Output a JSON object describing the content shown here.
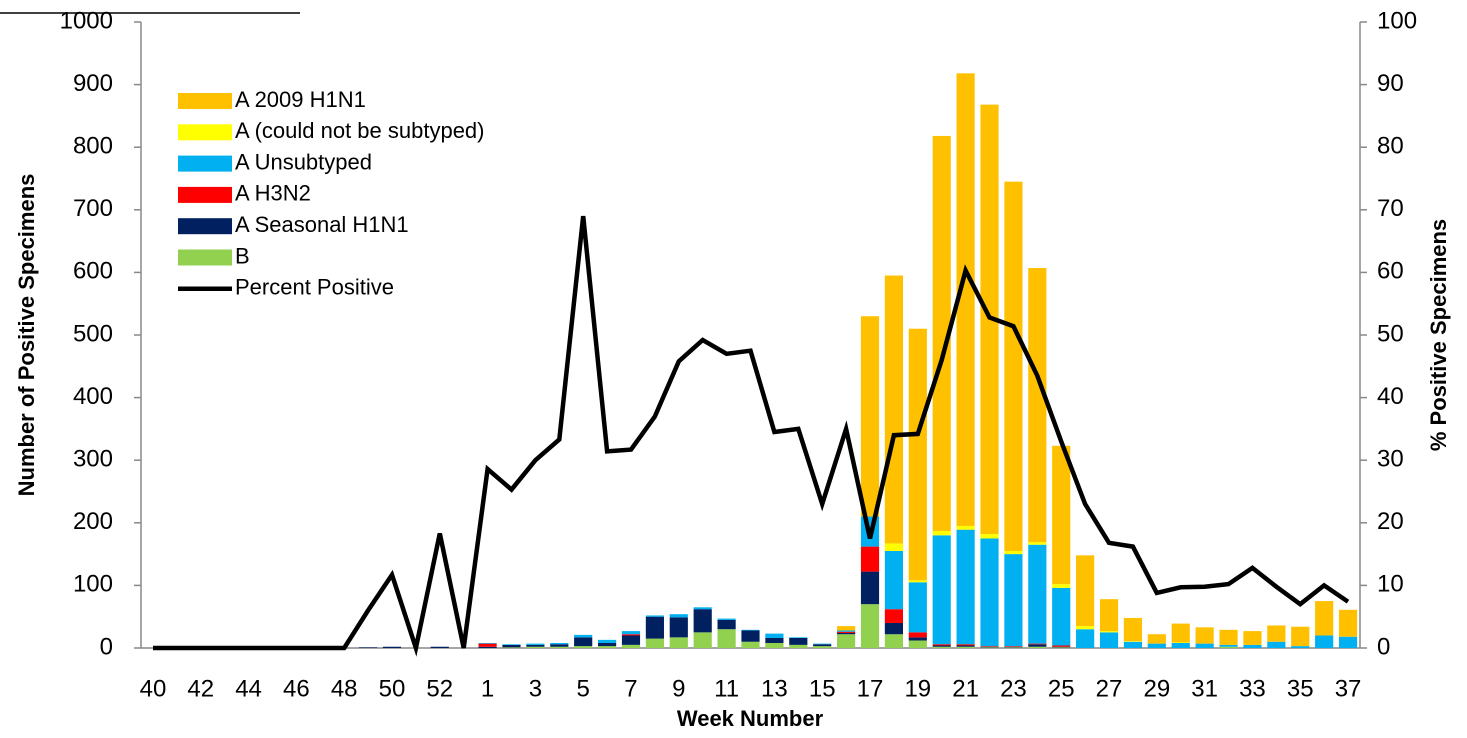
{
  "chart_data": {
    "type": "bar",
    "stacked": true,
    "x_label": "Week Number",
    "y_label": "Number of Positive Specimens",
    "y2_label": "% Positive Specimens",
    "categories": [
      "40",
      null,
      "42",
      null,
      "44",
      null,
      "46",
      null,
      "48",
      null,
      "50",
      null,
      "52",
      null,
      "1",
      null,
      "3",
      null,
      "5",
      null,
      "7",
      null,
      "9",
      null,
      "11",
      null,
      "13",
      null,
      "15",
      null,
      "17",
      null,
      "19",
      null,
      "21",
      null,
      "23",
      null,
      "25",
      null,
      "27",
      null,
      "29",
      null,
      "31",
      null,
      "33",
      null,
      "35",
      null,
      "37"
    ],
    "ylim": [
      0,
      1000
    ],
    "yticks": [
      0,
      100,
      200,
      300,
      400,
      500,
      600,
      700,
      800,
      900,
      1000
    ],
    "y2lim": [
      0,
      100
    ],
    "y2ticks": [
      0,
      10,
      20,
      30,
      40,
      50,
      60,
      70,
      80,
      90,
      100
    ],
    "grid": false,
    "legend": "upper left",
    "series": [
      {
        "name": "B",
        "color": "#92D050",
        "values": [
          0,
          0,
          0,
          0,
          0,
          0,
          0,
          0,
          0,
          0,
          0,
          0,
          0,
          0,
          0,
          1,
          2,
          2,
          3,
          3,
          5,
          15,
          17,
          25,
          30,
          10,
          8,
          5,
          3,
          22,
          70,
          22,
          12,
          2,
          2,
          1,
          1,
          2,
          1,
          0,
          0,
          0,
          0,
          0,
          0,
          2,
          0,
          0,
          0,
          0,
          0
        ]
      },
      {
        "name": "A Seasonal H1N1",
        "color": "#002060",
        "values": [
          0,
          0,
          0,
          0,
          0,
          0,
          0,
          0,
          0,
          1,
          2,
          0,
          2,
          0,
          2,
          4,
          3,
          4,
          14,
          5,
          15,
          35,
          32,
          37,
          15,
          18,
          8,
          11,
          3,
          2,
          52,
          18,
          5,
          2,
          2,
          1,
          1,
          4,
          1,
          0,
          0,
          0,
          0,
          0,
          0,
          0,
          0,
          0,
          0,
          0,
          0
        ]
      },
      {
        "name": "A H3N2",
        "color": "#FF0000",
        "values": [
          0,
          0,
          0,
          0,
          0,
          0,
          0,
          0,
          0,
          0,
          0,
          0,
          0,
          0,
          5,
          0,
          0,
          0,
          0,
          0,
          2,
          0,
          0,
          0,
          0,
          0,
          0,
          0,
          0,
          2,
          40,
          22,
          8,
          2,
          2,
          1,
          1,
          1,
          2,
          0,
          0,
          0,
          0,
          0,
          0,
          0,
          0,
          0,
          0,
          0,
          0
        ]
      },
      {
        "name": "A Unsubtyped",
        "color": "#00B0F0",
        "values": [
          0,
          0,
          0,
          0,
          0,
          0,
          0,
          0,
          0,
          0,
          0,
          0,
          0,
          0,
          1,
          1,
          2,
          2,
          4,
          5,
          5,
          2,
          5,
          3,
          2,
          1,
          7,
          1,
          1,
          2,
          48,
          93,
          80,
          174,
          183,
          172,
          147,
          158,
          92,
          30,
          25,
          10,
          7,
          8,
          7,
          3,
          5,
          10,
          3,
          20,
          18
        ]
      },
      {
        "name": "A (could not be subtyped)",
        "color": "#FFFF00",
        "values": [
          0,
          0,
          0,
          0,
          0,
          0,
          0,
          0,
          0,
          0,
          0,
          0,
          0,
          0,
          0,
          0,
          0,
          0,
          0,
          0,
          0,
          0,
          0,
          0,
          0,
          0,
          0,
          0,
          0,
          0,
          0,
          12,
          3,
          7,
          6,
          7,
          5,
          4,
          6,
          5,
          2,
          1,
          0,
          1,
          0,
          0,
          0,
          0,
          0,
          0,
          0
        ]
      },
      {
        "name": "A 2009 H1N1",
        "color": "#FFC000",
        "values": [
          0,
          0,
          0,
          0,
          0,
          0,
          0,
          0,
          0,
          0,
          0,
          0,
          0,
          0,
          0,
          0,
          0,
          0,
          0,
          0,
          0,
          0,
          0,
          0,
          0,
          0,
          0,
          0,
          0,
          7,
          320,
          428,
          402,
          631,
          723,
          686,
          590,
          438,
          221,
          113,
          51,
          37,
          15,
          30,
          26,
          24,
          22,
          26,
          31,
          55,
          43
        ]
      },
      {
        "name": "Percent Positive",
        "type": "line",
        "axis": "y2",
        "color": "#000000",
        "values": [
          0,
          0,
          0,
          0,
          0,
          0,
          0,
          0,
          0,
          6,
          11.7,
          0,
          18.3,
          0,
          28.6,
          25.3,
          30,
          33.3,
          69,
          31.4,
          31.7,
          37,
          45.8,
          49.2,
          47,
          47.5,
          34.5,
          35,
          23,
          35,
          17.5,
          34,
          34.2,
          46,
          60.3,
          52.8,
          51.4,
          43.5,
          33,
          23,
          16.8,
          16.2,
          8.8,
          9.7,
          9.8,
          10.2,
          12.8,
          9.8,
          7,
          10,
          7.4
        ]
      }
    ]
  }
}
